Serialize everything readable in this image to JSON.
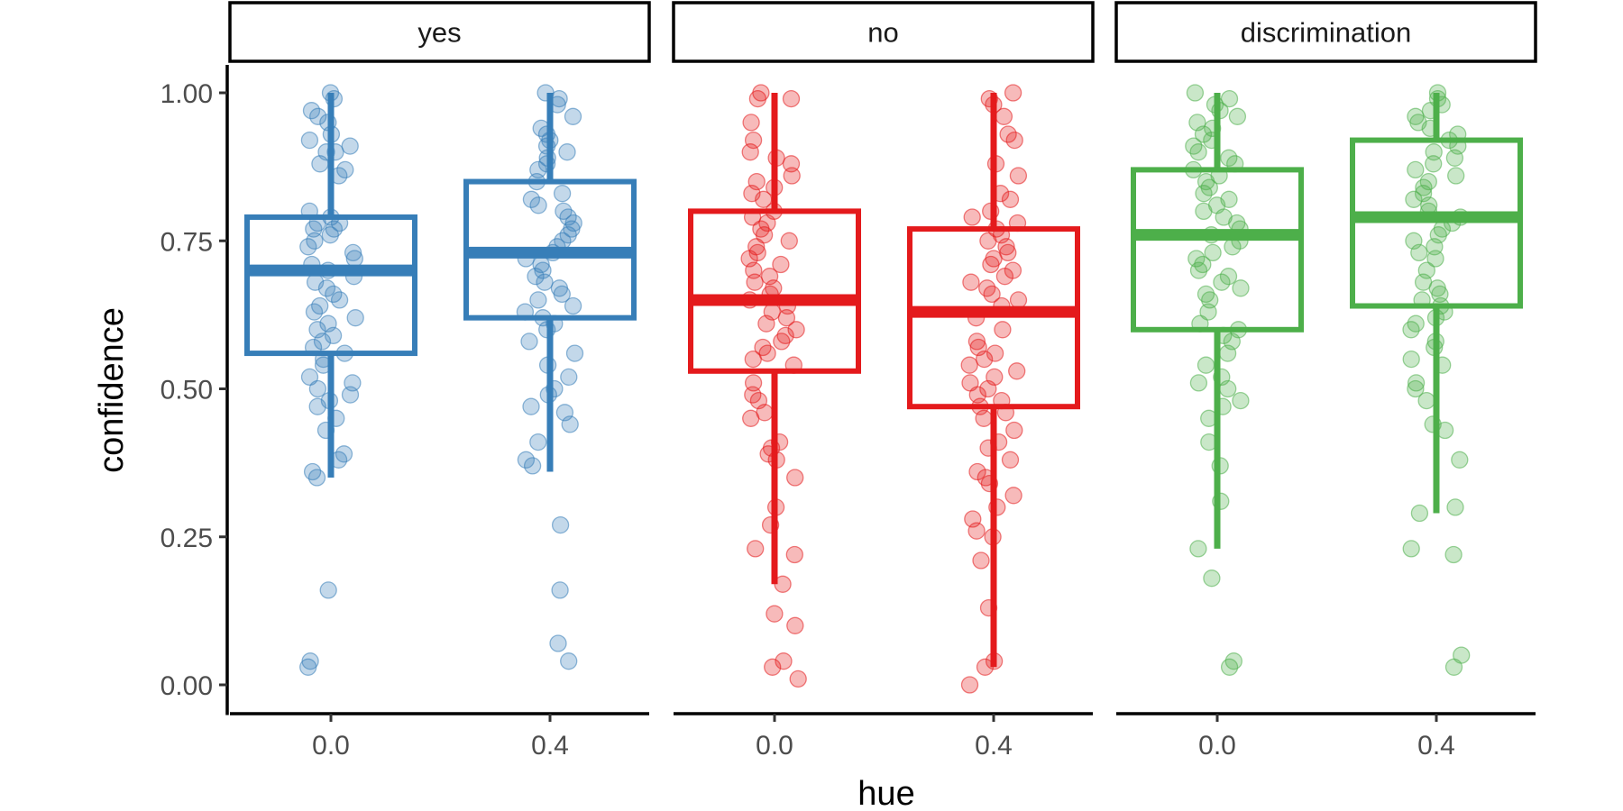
{
  "chart_data": {
    "type": "boxplot",
    "xlabel": "hue",
    "ylabel": "confidence",
    "ylim": [
      -0.05,
      1.05
    ],
    "y_ticks": [
      "0.00",
      "0.25",
      "0.50",
      "0.75",
      "1.00"
    ],
    "x_categories": [
      "0.0",
      "0.4"
    ],
    "legend": "none",
    "grid": false,
    "facets": [
      {
        "label": "yes",
        "color": "#377EB8",
        "boxes": [
          {
            "x": "0.0",
            "whisker_low": 0.35,
            "q1": 0.56,
            "median": 0.7,
            "q3": 0.79,
            "whisker_high": 1.0
          },
          {
            "x": "0.4",
            "whisker_low": 0.36,
            "q1": 0.62,
            "median": 0.73,
            "q3": 0.85,
            "whisker_high": 1.0
          }
        ],
        "points": [
          {
            "x": "0.0",
            "values": [
              1.0,
              0.99,
              0.97,
              0.96,
              0.95,
              0.93,
              0.92,
              0.91,
              0.9,
              0.9,
              0.88,
              0.87,
              0.86,
              0.8,
              0.79,
              0.78,
              0.78,
              0.77,
              0.77,
              0.76,
              0.75,
              0.74,
              0.73,
              0.72,
              0.71,
              0.7,
              0.69,
              0.68,
              0.67,
              0.66,
              0.65,
              0.64,
              0.63,
              0.62,
              0.61,
              0.6,
              0.59,
              0.58,
              0.57,
              0.56,
              0.55,
              0.54,
              0.52,
              0.51,
              0.5,
              0.49,
              0.48,
              0.47,
              0.45,
              0.43,
              0.39,
              0.38,
              0.36,
              0.35,
              0.16,
              0.04,
              0.03
            ]
          },
          {
            "x": "0.4",
            "values": [
              1.0,
              0.99,
              0.98,
              0.96,
              0.94,
              0.93,
              0.92,
              0.91,
              0.9,
              0.89,
              0.88,
              0.87,
              0.85,
              0.83,
              0.82,
              0.81,
              0.8,
              0.79,
              0.78,
              0.77,
              0.76,
              0.75,
              0.74,
              0.73,
              0.72,
              0.71,
              0.7,
              0.69,
              0.68,
              0.67,
              0.66,
              0.65,
              0.64,
              0.63,
              0.62,
              0.61,
              0.6,
              0.58,
              0.56,
              0.54,
              0.52,
              0.5,
              0.49,
              0.47,
              0.46,
              0.44,
              0.41,
              0.38,
              0.37,
              0.27,
              0.16,
              0.07,
              0.04
            ]
          }
        ]
      },
      {
        "label": "no",
        "color": "#E41A1C",
        "boxes": [
          {
            "x": "0.0",
            "whisker_low": 0.17,
            "q1": 0.53,
            "median": 0.65,
            "q3": 0.8,
            "whisker_high": 1.0
          },
          {
            "x": "0.4",
            "whisker_low": 0.03,
            "q1": 0.47,
            "median": 0.63,
            "q3": 0.77,
            "whisker_high": 1.0
          }
        ],
        "points": [
          {
            "x": "0.0",
            "values": [
              1.0,
              0.99,
              0.99,
              0.95,
              0.92,
              0.9,
              0.89,
              0.88,
              0.86,
              0.85,
              0.84,
              0.83,
              0.82,
              0.8,
              0.79,
              0.78,
              0.77,
              0.76,
              0.75,
              0.74,
              0.73,
              0.72,
              0.71,
              0.7,
              0.69,
              0.68,
              0.67,
              0.66,
              0.65,
              0.64,
              0.63,
              0.62,
              0.61,
              0.6,
              0.59,
              0.58,
              0.57,
              0.56,
              0.55,
              0.54,
              0.51,
              0.49,
              0.48,
              0.46,
              0.45,
              0.41,
              0.4,
              0.39,
              0.38,
              0.35,
              0.3,
              0.27,
              0.23,
              0.22,
              0.17,
              0.12,
              0.1,
              0.04,
              0.03,
              0.01
            ]
          },
          {
            "x": "0.4",
            "values": [
              1.0,
              0.99,
              0.98,
              0.96,
              0.93,
              0.92,
              0.88,
              0.86,
              0.83,
              0.82,
              0.8,
              0.79,
              0.78,
              0.77,
              0.76,
              0.75,
              0.74,
              0.73,
              0.72,
              0.71,
              0.7,
              0.69,
              0.68,
              0.67,
              0.66,
              0.65,
              0.64,
              0.62,
              0.6,
              0.58,
              0.57,
              0.56,
              0.55,
              0.54,
              0.53,
              0.52,
              0.51,
              0.5,
              0.49,
              0.48,
              0.47,
              0.46,
              0.45,
              0.43,
              0.41,
              0.4,
              0.38,
              0.36,
              0.35,
              0.34,
              0.32,
              0.3,
              0.28,
              0.26,
              0.25,
              0.21,
              0.13,
              0.04,
              0.03,
              0.0
            ]
          }
        ]
      },
      {
        "label": "discrimination",
        "color": "#4DAF4A",
        "boxes": [
          {
            "x": "0.0",
            "whisker_low": 0.23,
            "q1": 0.6,
            "median": 0.76,
            "q3": 0.87,
            "whisker_high": 1.0
          },
          {
            "x": "0.4",
            "whisker_low": 0.29,
            "q1": 0.64,
            "median": 0.79,
            "q3": 0.92,
            "whisker_high": 1.0
          }
        ],
        "points": [
          {
            "x": "0.0",
            "values": [
              1.0,
              0.99,
              0.98,
              0.97,
              0.96,
              0.95,
              0.94,
              0.93,
              0.92,
              0.91,
              0.9,
              0.89,
              0.88,
              0.87,
              0.86,
              0.85,
              0.84,
              0.83,
              0.82,
              0.81,
              0.8,
              0.79,
              0.78,
              0.77,
              0.76,
              0.75,
              0.74,
              0.73,
              0.72,
              0.71,
              0.7,
              0.69,
              0.68,
              0.67,
              0.66,
              0.65,
              0.63,
              0.61,
              0.6,
              0.59,
              0.58,
              0.56,
              0.54,
              0.52,
              0.51,
              0.5,
              0.48,
              0.47,
              0.45,
              0.41,
              0.37,
              0.31,
              0.23,
              0.18,
              0.04,
              0.03
            ]
          },
          {
            "x": "0.4",
            "values": [
              1.0,
              0.99,
              0.98,
              0.97,
              0.96,
              0.95,
              0.94,
              0.93,
              0.92,
              0.91,
              0.9,
              0.89,
              0.88,
              0.87,
              0.86,
              0.85,
              0.84,
              0.83,
              0.82,
              0.81,
              0.8,
              0.79,
              0.78,
              0.77,
              0.76,
              0.75,
              0.74,
              0.73,
              0.72,
              0.7,
              0.68,
              0.67,
              0.66,
              0.65,
              0.64,
              0.63,
              0.62,
              0.61,
              0.6,
              0.58,
              0.57,
              0.55,
              0.54,
              0.51,
              0.5,
              0.48,
              0.44,
              0.43,
              0.38,
              0.3,
              0.29,
              0.23,
              0.22,
              0.05,
              0.03
            ]
          }
        ]
      }
    ]
  }
}
